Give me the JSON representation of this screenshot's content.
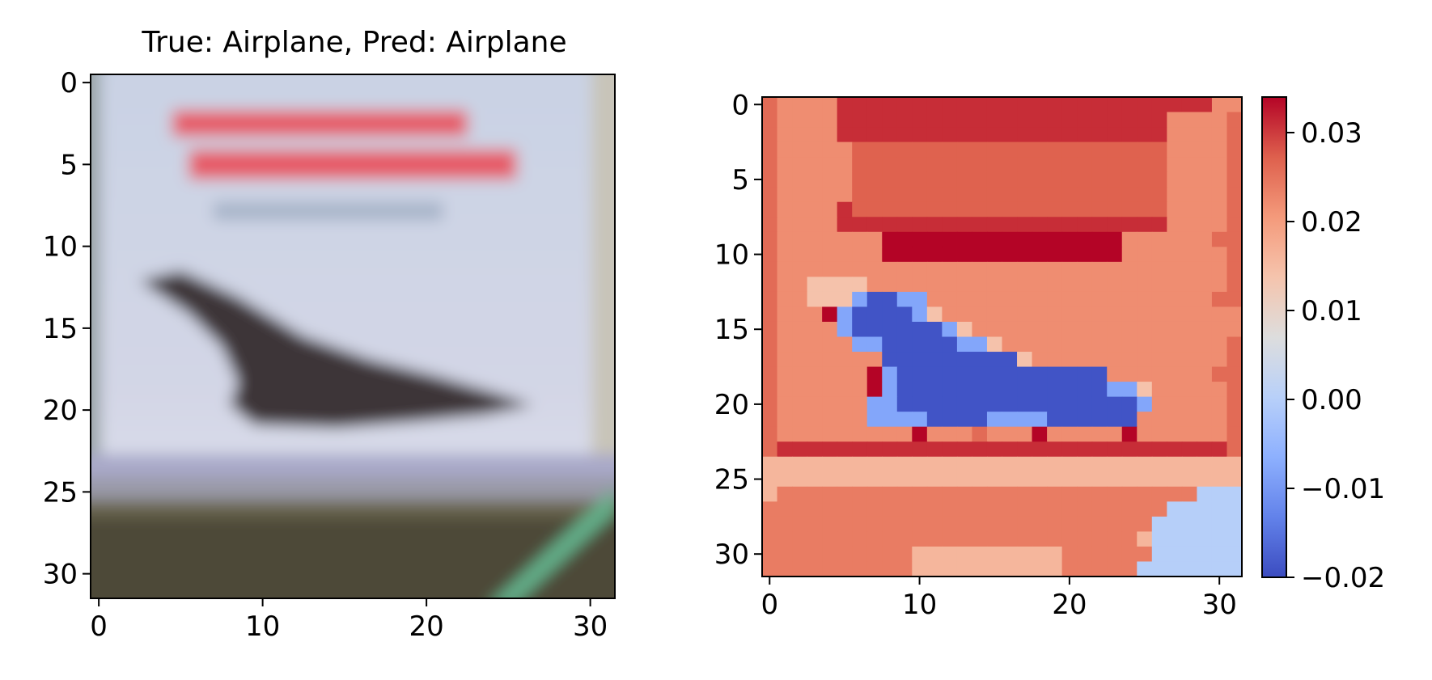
{
  "figure": {
    "background": "#ffffff"
  },
  "chart_data": [
    {
      "type": "heatmap",
      "id": "input-image",
      "title": "True: Airplane, Pred: Airplane",
      "xlabel": "",
      "ylabel": "",
      "xlim": [
        -0.5,
        31.5
      ],
      "ylim": [
        31.5,
        -0.5
      ],
      "x_ticks": [
        0,
        10,
        20,
        30
      ],
      "y_ticks": [
        0,
        5,
        10,
        15,
        20,
        25,
        30
      ],
      "grid": false,
      "description_of_values": "blurred RGB photo (32x32) of a Concorde-style airplane",
      "colors": {
        "sky_top": "#c9d2e4",
        "sky_mid": "#d3d6e6",
        "sky_low": "#e4e6f0",
        "plane": "#3c3437",
        "banner_text": "#e65a66",
        "subtitle": "#a6b3c8",
        "horizon": "#a9a9c9",
        "ground": "#4e4a37",
        "ground_light": "#6b664f",
        "stripe": "#63b08a",
        "edge_left": "#9aa4a8"
      }
    },
    {
      "type": "heatmap",
      "id": "attribution-map",
      "title": "",
      "xlabel": "",
      "ylabel": "",
      "colormap": "coolwarm",
      "xlim": [
        -0.5,
        31.5
      ],
      "ylim": [
        31.5,
        -0.5
      ],
      "x_ticks": [
        0,
        10,
        20,
        30
      ],
      "y_ticks": [
        0,
        5,
        10,
        15,
        20,
        25,
        30
      ],
      "vmin": -0.02,
      "vmax": 0.034,
      "colorbar_ticks": [
        "0.03",
        "0.02",
        "0.01",
        "0.00",
        "−0.01",
        "−0.02"
      ],
      "colorbar_tick_values": [
        0.03,
        0.02,
        0.01,
        0.0,
        -0.01,
        -0.02
      ],
      "grid": false,
      "regions": [
        {
          "name": "background",
          "value": 0.022
        },
        {
          "name": "outer-border",
          "value": 0.026
        },
        {
          "name": "top-banner",
          "value": 0.031
        },
        {
          "name": "text-block",
          "value": 0.027
        },
        {
          "name": "bar-row-9-10",
          "value": 0.034
        },
        {
          "name": "plane-body",
          "value": -0.019
        },
        {
          "name": "plane-edge",
          "value": -0.008
        },
        {
          "name": "horizon-row-24-25",
          "value": 0.016
        },
        {
          "name": "ground",
          "value": 0.024
        },
        {
          "name": "bottom-right-corner",
          "value": 0.0
        }
      ],
      "grid_rows": [
        "0ddddnnnnnnnnnnnnnnnnnnnnnnnnndd",
        "0ddddnnnnnnnnnnnnnnnnnnnnnndddd0",
        "0ddddnnnnnnnnnnnnnnnnnnnnnndddd0",
        "0dddddeeeeeeeeeeeeeeeeeeeeedddd0",
        "0dddddeeeeeeeeeeeeeeeeeeeeedddd0",
        "0dddddeeeeeeeeeeeeeeeeeeeeedddd0",
        "0dddddeeeeeeeeeeeeeeeeeeeeecddd0",
        "0ddddneeeeeeeeeeeeeeeeeeeeeccdd0",
        "0ddddnnnnnnnnnnnnnnnnnnnnnnccdd0",
        "0cccccccrrrrrrrrrrrrrrrrcccccc0",
        "0cccccccrrrrrrrrrrrrrrrrccccccc0",
        "0ccccccccddddddddddddddcccccccc0",
        "0cciiiiddcccccccccccccccccccccc0",
        "0cciiiLbbLLccccccccccccccccccc0",
        "0cccrLbbbbLicccccccccccccccccccc0",
        "0ccccLbbbbbbLicccccccccccccccccc0",
        "0cccccLLbbbbbLLiccccccccccccccc0",
        "0cccccccbbbbbbbbbiccccccccccccc0",
        "0ccccccrLbbbbbbbbbbbbbbccccccc0",
        "0ccccccrLbbbbbbbbbbbbbbLLiccccc0",
        "0ccccccLLbbbbbbbbbbbbbbbbLccccc0",
        "0ccccccLLLLbbbbLLLLbbbbbbddcccc0",
        "0cccccccccrccc0cccrcccccrcccccc0",
        "0nnnnnnnnnnnnnnnnnnnnnnnnnnnnnn0",
        "hhhhhhhhhhhhhhhhhhhhhhhhhhhhhhhh",
        "hhhhhhhhhhhhhhhhhhhhhhhhhhhhhhhh",
        "hggggggggggggggggggggggggggggzzz",
        "gggggggggggggggggggggggggggzzzzz",
        "ggggggggggggggggggggggggggzzzzzz",
        "ggggggggggggggggggggggggghzzzzzz",
        "gggggggggghhhhhhhhhhggggggzzzzzz",
        "gggggggggghhhhhhhhhhgggggzzzzzzz"
      ],
      "legend_key": {
        "0": 0.026,
        "d": 0.022,
        "n": 0.031,
        "e": 0.027,
        "c": 0.022,
        "r": 0.034,
        "i": 0.014,
        "b": -0.019,
        "L": -0.008,
        "h": 0.016,
        "g": 0.024,
        "z": 0.0
      }
    }
  ]
}
